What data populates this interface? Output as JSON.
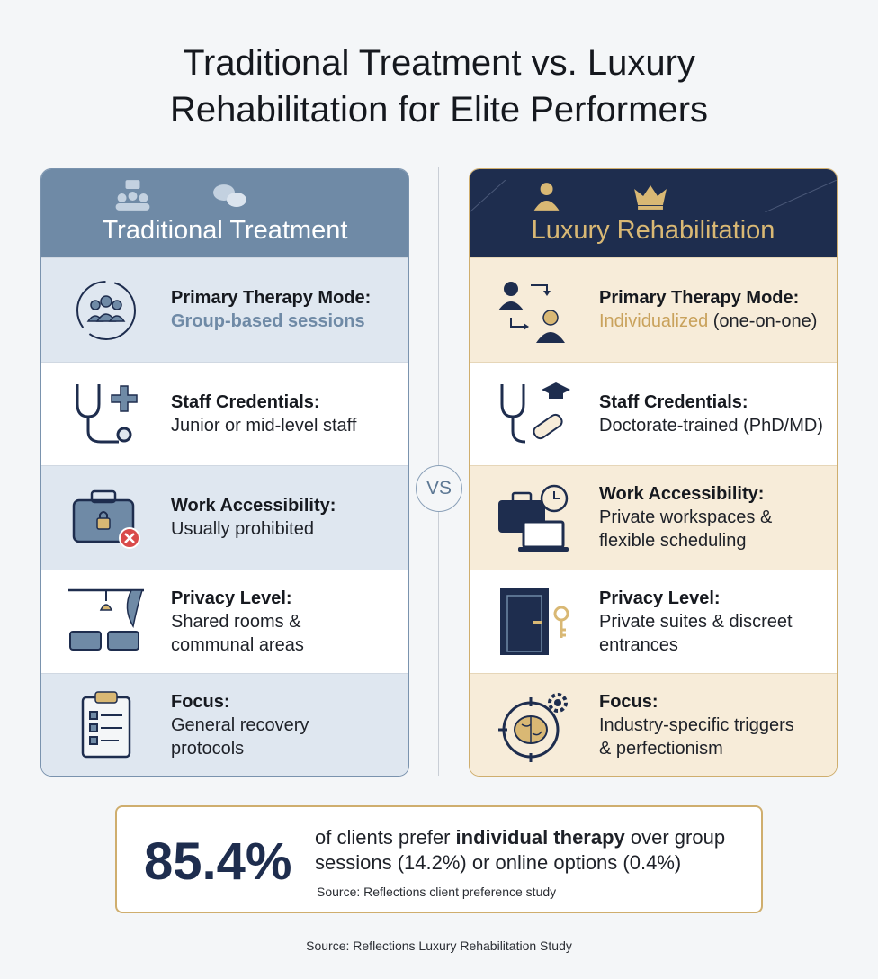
{
  "title_line1": "Traditional Treatment vs. Luxury",
  "title_line2": "Rehabilitation for Elite Performers",
  "vs_label": "VS",
  "traditional": {
    "heading": "Traditional Treatment",
    "header_icons": [
      "group-chat-icon",
      "speech-bubbles-icon"
    ],
    "rows": [
      {
        "label": "Primary Therapy Mode:",
        "value": "Group-based sessions",
        "icon": "group-cycle-icon"
      },
      {
        "label": "Staff Credentials:",
        "value": "Junior or mid-level staff",
        "icon": "stethoscope-plus-icon"
      },
      {
        "label": "Work Accessibility:",
        "value": "Usually prohibited",
        "icon": "locked-briefcase-icon"
      },
      {
        "label": "Privacy Level:",
        "value_line1": "Shared rooms &",
        "value_line2": "communal areas",
        "icon": "shared-beds-icon"
      },
      {
        "label": "Focus:",
        "value_line1": "General recovery",
        "value_line2": "protocols",
        "icon": "clipboard-checklist-icon"
      }
    ]
  },
  "luxury": {
    "heading": "Luxury Rehabilitation",
    "header_icons": [
      "executive-person-icon",
      "crown-icon"
    ],
    "rows": [
      {
        "label": "Primary Therapy Mode:",
        "value_highlight": "Individualized",
        "value_rest": " (one-on-one)",
        "icon": "one-on-one-icon"
      },
      {
        "label": "Staff Credentials:",
        "value": "Doctorate-trained (PhD/MD)",
        "icon": "stethoscope-graduate-icon"
      },
      {
        "label": "Work Accessibility:",
        "value_line1": "Private workspaces &",
        "value_line2": "flexible scheduling",
        "icon": "briefcase-laptop-clock-icon"
      },
      {
        "label": "Privacy Level:",
        "value_line1": "Private suites & discreet",
        "value_line2": "entrances",
        "icon": "door-key-icon"
      },
      {
        "label": "Focus:",
        "value_line1": "Industry-specific triggers",
        "value_line2": "& perfectionism",
        "icon": "brain-target-gear-icon"
      }
    ]
  },
  "stat": {
    "value": "85.4%",
    "desc_pre": "of clients prefer ",
    "desc_bold": "individual therapy",
    "desc_post": " over group sessions (14.2%) or online options (0.4%)",
    "source": "Source: Reflections client preference study"
  },
  "footer": "Source: Reflections Luxury Rehabilitation Study",
  "colors": {
    "traditional_accent": "#6f8aa6",
    "luxury_navy": "#1e2d4e",
    "luxury_gold": "#cfae6e"
  }
}
